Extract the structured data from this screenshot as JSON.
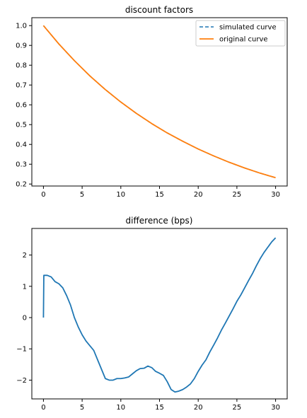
{
  "chart_data": [
    {
      "type": "line",
      "title": "discount factors",
      "xlabel": "",
      "ylabel": "",
      "xlim": [
        -1.5,
        31.5
      ],
      "ylim": [
        0.19,
        1.04
      ],
      "xticks": [
        0,
        5,
        10,
        15,
        20,
        25,
        30
      ],
      "xtick_labels": [
        "0",
        "5",
        "10",
        "15",
        "20",
        "25",
        "30"
      ],
      "yticks": [
        0.2,
        0.3,
        0.4,
        0.5,
        0.6,
        0.7,
        0.8,
        0.9,
        1.0
      ],
      "ytick_labels": [
        "0.2",
        "0.3",
        "0.4",
        "0.5",
        "0.6",
        "0.7",
        "0.8",
        "0.9",
        "1.0"
      ],
      "grid": false,
      "legend": "top-right",
      "series": [
        {
          "name": "simulated curve",
          "color": "#1f77b4",
          "style": "dashed",
          "x": [
            0,
            2,
            4,
            6,
            8,
            10,
            12,
            14,
            16,
            18,
            20,
            22,
            24,
            26,
            28,
            30
          ],
          "y": [
            1.0,
            0.907,
            0.823,
            0.746,
            0.677,
            0.614,
            0.557,
            0.505,
            0.458,
            0.416,
            0.377,
            0.342,
            0.31,
            0.281,
            0.255,
            0.232
          ]
        },
        {
          "name": "original curve",
          "color": "#ff7f0e",
          "style": "solid",
          "x": [
            0,
            2,
            4,
            6,
            8,
            10,
            12,
            14,
            16,
            18,
            20,
            22,
            24,
            26,
            28,
            30
          ],
          "y": [
            1.0,
            0.907,
            0.823,
            0.746,
            0.677,
            0.614,
            0.557,
            0.505,
            0.458,
            0.416,
            0.377,
            0.342,
            0.31,
            0.281,
            0.255,
            0.232
          ]
        }
      ]
    },
    {
      "type": "line",
      "title": "difference (bps)",
      "xlabel": "",
      "ylabel": "",
      "xlim": [
        -1.5,
        31.5
      ],
      "ylim": [
        -2.6,
        2.85
      ],
      "xticks": [
        0,
        5,
        10,
        15,
        20,
        25,
        30
      ],
      "xtick_labels": [
        "0",
        "5",
        "10",
        "15",
        "20",
        "25",
        "30"
      ],
      "yticks": [
        -2,
        -1,
        0,
        1,
        2
      ],
      "ytick_labels": [
        "−2",
        "−1",
        "0",
        "1",
        "2"
      ],
      "grid": false,
      "legend": "none",
      "series": [
        {
          "color": "#1f77b4",
          "style": "solid",
          "x": [
            0,
            0.05,
            0.5,
            1.0,
            1.5,
            2.0,
            2.5,
            3.0,
            3.5,
            4.0,
            4.5,
            5.0,
            5.5,
            6.0,
            6.5,
            7.0,
            7.5,
            8.0,
            8.5,
            9.0,
            9.5,
            10.0,
            10.5,
            11.0,
            11.5,
            12.0,
            12.5,
            13.0,
            13.5,
            14.0,
            14.5,
            15.0,
            15.5,
            16.0,
            16.5,
            17.0,
            17.5,
            18.0,
            18.5,
            19.0,
            19.5,
            20.0,
            20.5,
            21.0,
            21.5,
            22.0,
            22.5,
            23.0,
            23.5,
            24.0,
            24.5,
            25.0,
            25.5,
            26.0,
            26.5,
            27.0,
            27.5,
            28.0,
            28.5,
            29.0,
            29.5,
            30.0
          ],
          "y": [
            0.0,
            1.35,
            1.35,
            1.3,
            1.15,
            1.08,
            0.95,
            0.7,
            0.4,
            0.0,
            -0.3,
            -0.55,
            -0.75,
            -0.9,
            -1.05,
            -1.35,
            -1.65,
            -1.95,
            -2.0,
            -2.0,
            -1.95,
            -1.95,
            -1.93,
            -1.9,
            -1.8,
            -1.7,
            -1.63,
            -1.62,
            -1.55,
            -1.6,
            -1.72,
            -1.78,
            -1.85,
            -2.05,
            -2.3,
            -2.38,
            -2.35,
            -2.3,
            -2.22,
            -2.12,
            -1.95,
            -1.72,
            -1.52,
            -1.35,
            -1.1,
            -0.88,
            -0.65,
            -0.4,
            -0.18,
            0.05,
            0.28,
            0.52,
            0.72,
            0.95,
            1.18,
            1.4,
            1.65,
            1.88,
            2.08,
            2.25,
            2.42,
            2.55
          ]
        }
      ]
    }
  ],
  "layout_hint": {
    "colors": {
      "axes": "#000000",
      "background": "#ffffff"
    }
  }
}
